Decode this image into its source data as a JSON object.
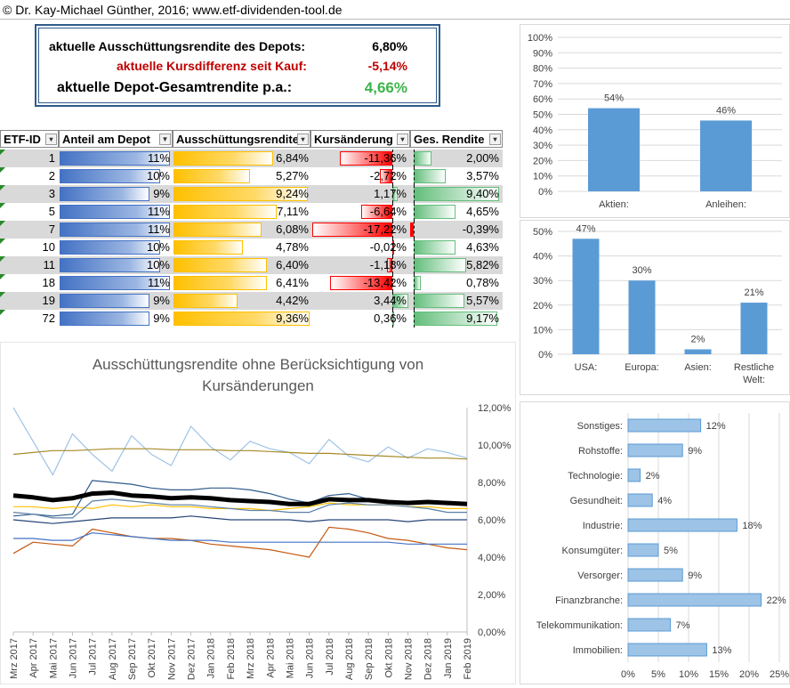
{
  "header": {
    "copyright": "© Dr. Kay-Michael Günther, 2016; www.etf-dividenden-tool.de"
  },
  "summary": {
    "line1_label": "aktuelle Ausschüttungsrendite des Depots:",
    "line1_value": "6,80%",
    "line2_label": "aktuelle Kursdifferenz seit Kauf:",
    "line2_value": "-5,14%",
    "line3_label": "aktuelle Depot-Gesamtrendite p.a.:",
    "line3_value": "4,66%",
    "colors": {
      "negative": "#c00000",
      "positive": "#3cb44b"
    }
  },
  "table": {
    "headers": [
      "ETF-ID",
      "Anteil am Depot",
      "Ausschüttungsrendite",
      "Kursänderung",
      "Ges. Rendite"
    ],
    "rows": [
      {
        "id": "1",
        "anteil": "11%",
        "ausschuettung": "6,84%",
        "kurs": "-11,36%",
        "ges": "2,00%",
        "a": 11,
        "r": 6.84,
        "k": -11.36,
        "g": 2.0
      },
      {
        "id": "2",
        "anteil": "10%",
        "ausschuettung": "5,27%",
        "kurs": "-2,72%",
        "ges": "3,57%",
        "a": 10,
        "r": 5.27,
        "k": -2.72,
        "g": 3.57
      },
      {
        "id": "3",
        "anteil": "9%",
        "ausschuettung": "9,24%",
        "kurs": "1,17%",
        "ges": "9,40%",
        "a": 9,
        "r": 9.24,
        "k": 1.17,
        "g": 9.4
      },
      {
        "id": "5",
        "anteil": "11%",
        "ausschuettung": "7,11%",
        "kurs": "-6,64%",
        "ges": "4,65%",
        "a": 11,
        "r": 7.11,
        "k": -6.64,
        "g": 4.65
      },
      {
        "id": "7",
        "anteil": "11%",
        "ausschuettung": "6,08%",
        "kurs": "-17,22%",
        "ges": "-0,39%",
        "a": 11,
        "r": 6.08,
        "k": -17.22,
        "g": -0.39
      },
      {
        "id": "10",
        "anteil": "10%",
        "ausschuettung": "4,78%",
        "kurs": "-0,02%",
        "ges": "4,63%",
        "a": 10,
        "r": 4.78,
        "k": -0.02,
        "g": 4.63
      },
      {
        "id": "11",
        "anteil": "10%",
        "ausschuettung": "6,40%",
        "kurs": "-1,18%",
        "ges": "5,82%",
        "a": 10,
        "r": 6.4,
        "k": -1.18,
        "g": 5.82
      },
      {
        "id": "18",
        "anteil": "11%",
        "ausschuettung": "6,41%",
        "kurs": "-13,42%",
        "ges": "0,78%",
        "a": 11,
        "r": 6.41,
        "k": -13.42,
        "g": 0.78
      },
      {
        "id": "19",
        "anteil": "9%",
        "ausschuettung": "4,42%",
        "kurs": "3,44%",
        "ges": "5,57%",
        "a": 9,
        "r": 4.42,
        "k": 3.44,
        "g": 5.57
      },
      {
        "id": "72",
        "anteil": "9%",
        "ausschuettung": "9,36%",
        "kurs": "0,36%",
        "ges": "9,17%",
        "a": 9,
        "r": 9.36,
        "k": 0.36,
        "g": 9.17
      }
    ],
    "colors": {
      "stripe": "#d9d9d9",
      "anteil": "#4472c4",
      "ausschuettung": "#ffc000",
      "neg": "#ff0000",
      "pos": "#63be7b"
    }
  },
  "chart_data": [
    {
      "type": "bar",
      "categories": [
        "Aktien:",
        "Anleihen:"
      ],
      "values": [
        54,
        46
      ],
      "data_labels": [
        "54%",
        "46%"
      ],
      "ylim": [
        0,
        100
      ],
      "yticks": [
        "0%",
        "10%",
        "20%",
        "30%",
        "40%",
        "50%",
        "60%",
        "70%",
        "80%",
        "90%",
        "100%"
      ],
      "color": "#5b9bd5"
    },
    {
      "type": "bar",
      "categories": [
        "USA:",
        "Europa:",
        "Asien:",
        "Restliche Welt:"
      ],
      "values": [
        47,
        30,
        2,
        21
      ],
      "data_labels": [
        "47%",
        "30%",
        "2%",
        "21%"
      ],
      "ylim": [
        0,
        50
      ],
      "yticks": [
        "0%",
        "10%",
        "20%",
        "30%",
        "40%",
        "50%"
      ],
      "color": "#5b9bd5"
    },
    {
      "type": "bar",
      "orientation": "horizontal",
      "categories": [
        "Sonstiges:",
        "Rohstoffe:",
        "Technologie:",
        "Gesundheit:",
        "Industrie:",
        "Konsumgüter:",
        "Versorger:",
        "Finanzbranche:",
        "Telekommunikation:",
        "Immobilien:"
      ],
      "values": [
        12,
        9,
        2,
        4,
        18,
        5,
        9,
        22,
        7,
        13
      ],
      "data_labels": [
        "12%",
        "9%",
        "2%",
        "4%",
        "18%",
        "5%",
        "9%",
        "22%",
        "7%",
        "13%"
      ],
      "xlim": [
        0,
        25
      ],
      "xticks": [
        "0%",
        "5%",
        "10%",
        "15%",
        "20%",
        "25%"
      ],
      "color": "#9dc3e6"
    },
    {
      "type": "line",
      "title": "Ausschüttungsrendite ohne Berücksichtigung von Kursänderungen",
      "x": [
        "Mrz 2017",
        "Apr 2017",
        "Mai 2017",
        "Jun 2017",
        "Jul 2017",
        "Aug 2017",
        "Sep 2017",
        "Okt 2017",
        "Nov 2017",
        "Dez 2017",
        "Jan 2018",
        "Feb 2018",
        "Mrz 2018",
        "Apr 2018",
        "Mai 2018",
        "Jun 2018",
        "Jul 2018",
        "Aug 2018",
        "Sep 2018",
        "Okt 2018",
        "Nov 2018",
        "Dez 2018",
        "Jan 2019",
        "Feb 2019"
      ],
      "ylim": [
        0,
        12
      ],
      "yticks": [
        "0,00%",
        "2,00%",
        "4,00%",
        "6,00%",
        "8,00%",
        "10,00%",
        "12,00%"
      ],
      "series": [
        {
          "color": "#9dc3e6",
          "width": 1.2,
          "values": [
            12.0,
            10.2,
            8.4,
            10.6,
            9.5,
            8.6,
            10.5,
            9.5,
            8.9,
            11.0,
            9.9,
            9.2,
            10.2,
            9.8,
            9.6,
            9.0,
            10.3,
            9.4,
            9.1,
            9.9,
            9.3,
            9.8,
            9.6,
            9.3
          ]
        },
        {
          "color": "#a68a26",
          "width": 1.2,
          "values": [
            9.5,
            9.6,
            9.7,
            9.7,
            9.75,
            9.8,
            9.8,
            9.8,
            9.75,
            9.75,
            9.75,
            9.7,
            9.7,
            9.65,
            9.6,
            9.55,
            9.55,
            9.5,
            9.45,
            9.4,
            9.35,
            9.3,
            9.3,
            9.25
          ]
        },
        {
          "color": "#2e5b8c",
          "width": 1.2,
          "values": [
            6.2,
            6.3,
            6.2,
            6.3,
            8.1,
            8.0,
            7.9,
            7.7,
            7.6,
            7.6,
            7.7,
            7.7,
            7.6,
            7.4,
            7.1,
            6.9,
            7.3,
            7.4,
            7.1,
            7.0,
            6.9,
            7.0,
            6.9,
            6.8
          ]
        },
        {
          "color": "#ffc000",
          "width": 1.2,
          "values": [
            6.7,
            6.7,
            6.6,
            6.7,
            6.6,
            6.8,
            6.7,
            6.8,
            6.7,
            6.7,
            6.6,
            6.6,
            6.6,
            6.5,
            6.6,
            6.7,
            6.9,
            6.8,
            6.8,
            6.8,
            6.7,
            6.7,
            6.6,
            6.6
          ]
        },
        {
          "color": "#000000",
          "width": 5,
          "values": [
            7.3,
            7.2,
            7.05,
            7.15,
            7.4,
            7.45,
            7.3,
            7.25,
            7.15,
            7.2,
            7.15,
            7.05,
            7.0,
            6.95,
            6.85,
            6.85,
            7.1,
            7.05,
            7.05,
            6.95,
            6.9,
            6.95,
            6.9,
            6.85
          ]
        },
        {
          "color": "#5b7fa6",
          "width": 1.2,
          "values": [
            6.4,
            6.3,
            6.1,
            6.1,
            7.0,
            7.1,
            7.0,
            6.9,
            6.8,
            6.8,
            6.7,
            6.6,
            6.5,
            6.5,
            6.4,
            6.4,
            6.8,
            6.9,
            6.8,
            6.8,
            6.7,
            6.6,
            6.4,
            6.4
          ]
        },
        {
          "color": "#264478",
          "width": 1.2,
          "values": [
            6.0,
            5.9,
            5.8,
            5.9,
            6.0,
            6.1,
            6.1,
            6.1,
            6.1,
            6.2,
            6.1,
            6.0,
            6.0,
            6.0,
            6.0,
            5.9,
            6.0,
            6.0,
            6.0,
            6.0,
            5.9,
            6.0,
            6.0,
            6.0
          ]
        },
        {
          "color": "#c55a11",
          "width": 1.2,
          "values": [
            4.2,
            4.8,
            4.7,
            4.6,
            5.5,
            5.3,
            5.1,
            5.0,
            5.0,
            4.9,
            4.7,
            4.6,
            4.5,
            4.4,
            4.2,
            4.0,
            5.6,
            5.5,
            5.3,
            5.0,
            4.9,
            4.7,
            4.5,
            4.4
          ]
        },
        {
          "color": "#4472c4",
          "width": 1.2,
          "values": [
            5.0,
            5.0,
            4.9,
            4.9,
            5.3,
            5.2,
            5.1,
            5.0,
            4.9,
            4.9,
            4.9,
            4.8,
            4.8,
            4.8,
            4.8,
            4.8,
            4.8,
            4.8,
            4.8,
            4.8,
            4.7,
            4.7,
            4.7,
            4.7
          ]
        }
      ]
    }
  ]
}
